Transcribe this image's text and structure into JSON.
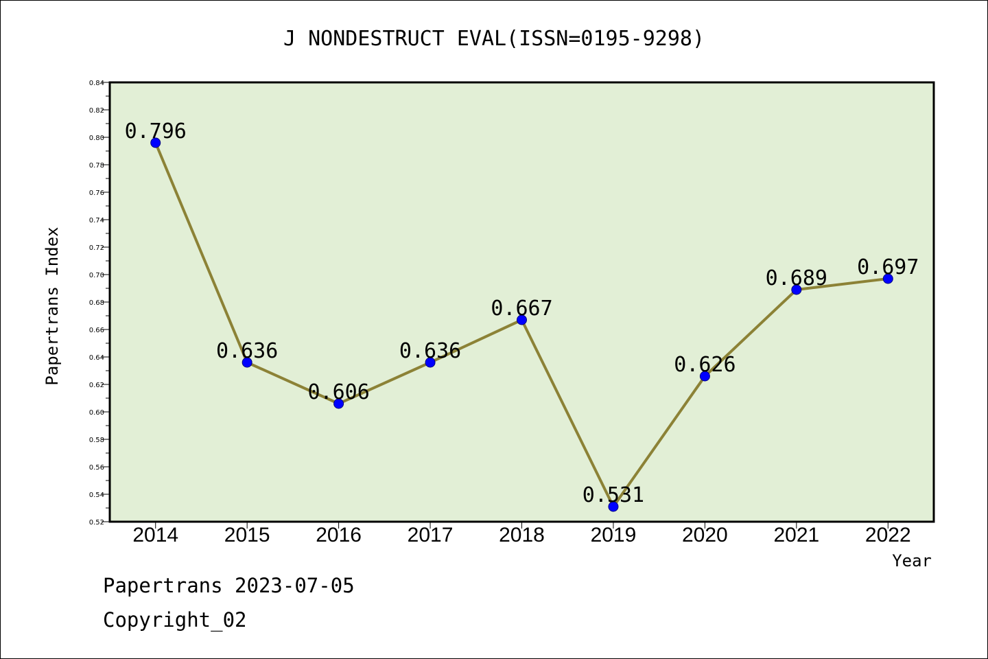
{
  "chart_data": {
    "type": "line",
    "title": "J NONDESTRUCT EVAL(ISSN=0195-9298)",
    "xlabel": "Year",
    "ylabel": "Papertrans Index",
    "categories": [
      "2014",
      "2015",
      "2016",
      "2017",
      "2018",
      "2019",
      "2020",
      "2021",
      "2022"
    ],
    "values": [
      0.796,
      0.636,
      0.606,
      0.636,
      0.667,
      0.531,
      0.626,
      0.689,
      0.697
    ],
    "data_labels": [
      "0.796",
      "0.636",
      "0.606",
      "0.636",
      "0.667",
      "0.531",
      "0.626",
      "0.689",
      "0.697"
    ],
    "ylim": [
      0.52,
      0.84
    ],
    "yticks": [
      "0.52",
      "0.54",
      "0.56",
      "0.58",
      "0.60",
      "0.62",
      "0.64",
      "0.66",
      "0.68",
      "0.70",
      "0.72",
      "0.74",
      "0.76",
      "0.78",
      "0.80",
      "0.82",
      "0.84"
    ],
    "grid": false,
    "colors": {
      "plot_background": "#e2efd6",
      "line": "#8c8236",
      "marker": "#0000ff"
    }
  },
  "footer": {
    "line1": "Papertrans 2023-07-05",
    "line2": "Copyright_02"
  }
}
